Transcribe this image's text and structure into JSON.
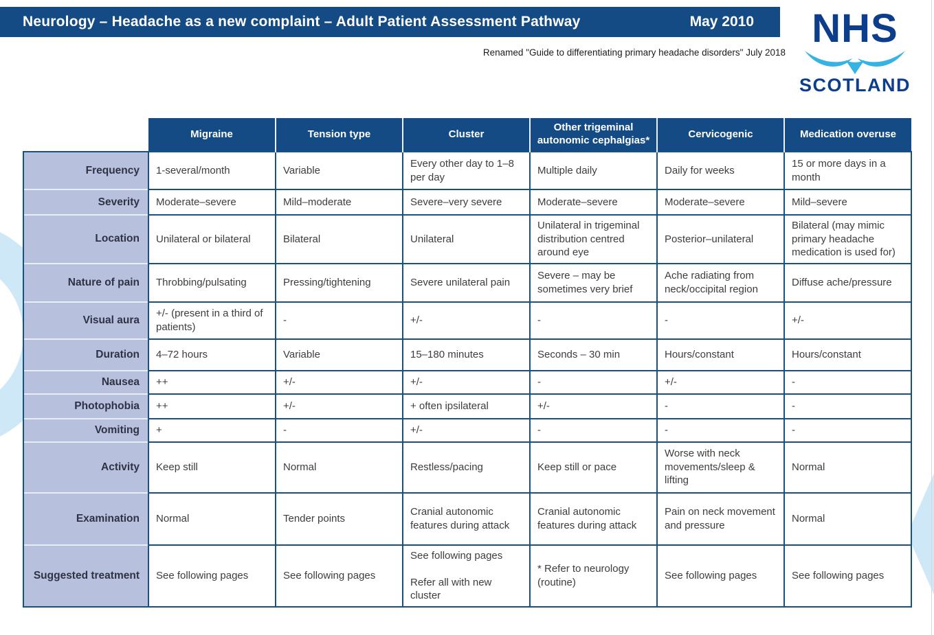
{
  "header": {
    "title": "Neurology – Headache as a new complaint – Adult Patient Assessment Pathway",
    "date": "May 2010",
    "subtitle": "Renamed \"Guide to differentiating primary headache disorders\" July 2018"
  },
  "logo": {
    "line1": "NHS",
    "line2": "SCOTLAND"
  },
  "colors": {
    "header_blue": "#144b84",
    "table_border_blue": "#17517f",
    "label_column_bg": "#b7c0dc",
    "logo_dark_blue": "#0d3e8c",
    "logo_light_blue": "#35b3e3",
    "decoration_light_blue": "#cfe8f7",
    "cell_text": "#3d3d3d"
  },
  "table": {
    "columns": [
      "Migraine",
      "Tension type",
      "Cluster",
      "Other trigeminal autonomic cephalgias*",
      "Cervicogenic",
      "Medication overuse"
    ],
    "rows": [
      {
        "label": "Frequency",
        "cells": [
          "1-several/month",
          "Variable",
          "Every other day to 1–8 per day",
          "Multiple daily",
          "Daily for weeks",
          "15 or more days in a month"
        ]
      },
      {
        "label": "Severity",
        "cells": [
          "Moderate–severe",
          "Mild–moderate",
          "Severe–very severe",
          "Moderate–severe",
          "Moderate–severe",
          "Mild–severe"
        ]
      },
      {
        "label": "Location",
        "cells": [
          "Unilateral or bilateral",
          "Bilateral",
          "Unilateral",
          "Unilateral in trigeminal distribution centred around eye",
          "Posterior–unilateral",
          "Bilateral (may mimic primary headache medication is used for)"
        ]
      },
      {
        "label": "Nature of pain",
        "cells": [
          "Throbbing/pulsating",
          "Pressing/tightening",
          "Severe unilateral pain",
          "Severe – may be sometimes very brief",
          "Ache radiating from neck/occipital region",
          "Diffuse ache/pressure"
        ]
      },
      {
        "label": "Visual aura",
        "cells": [
          "+/- (present in a third of patients)",
          "-",
          "+/-",
          "-",
          "-",
          "+/-"
        ]
      },
      {
        "label": "Duration",
        "cells": [
          "4–72 hours",
          "Variable",
          "15–180 minutes",
          "Seconds – 30 min",
          "Hours/constant",
          "Hours/constant"
        ]
      },
      {
        "label": "Nausea",
        "cells": [
          "++",
          "+/-",
          "+/-",
          "-",
          "+/-",
          "-"
        ]
      },
      {
        "label": "Photophobia",
        "cells": [
          "++",
          "+/-",
          "+ often ipsilateral",
          "+/-",
          "-",
          "-"
        ]
      },
      {
        "label": "Vomiting",
        "cells": [
          "+",
          "-",
          "+/-",
          "-",
          "-",
          "-"
        ]
      },
      {
        "label": "Activity",
        "cells": [
          "Keep still",
          "Normal",
          "Restless/pacing",
          "Keep still or pace",
          "Worse with neck movements/sleep & lifting",
          "Normal"
        ]
      },
      {
        "label": "Examination",
        "cells": [
          "Normal",
          "Tender points",
          "Cranial autonomic features during attack",
          "Cranial autonomic features during attack",
          "Pain on neck movement and pressure",
          "Normal"
        ]
      },
      {
        "label": "Suggested treatment",
        "cells": [
          "See following pages",
          "See following pages",
          "See following pages\n\nRefer all with new cluster",
          "* Refer to neurology (routine)",
          "See following pages",
          "See following pages"
        ]
      }
    ]
  }
}
